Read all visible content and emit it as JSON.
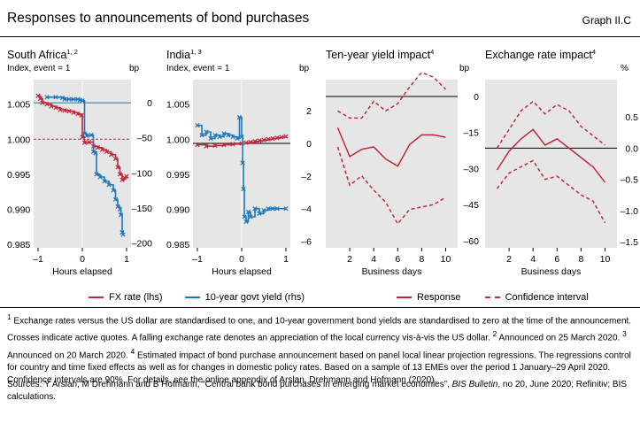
{
  "header": {
    "title": "Responses to announcements of bond purchases",
    "graph_label": "Graph II.C"
  },
  "panels": {
    "sa": {
      "title": "South Africa",
      "sup": "1, 2",
      "left_unit": "Index, event = 1",
      "right_unit": "bp"
    },
    "india": {
      "title": "India",
      "sup": "1, 3",
      "left_unit": "Index, event = 1",
      "right_unit": "bp"
    },
    "yield": {
      "title": "Ten-year yield impact",
      "sup": "4",
      "right_unit": "bp"
    },
    "fx": {
      "title": "Exchange rate impact",
      "sup": "4",
      "right_unit": "%"
    }
  },
  "legend_left": {
    "fx": "FX rate (lhs)",
    "yield": "10-year govt yield (rhs)"
  },
  "legend_right": {
    "response": "Response",
    "ci": "Confidence interval"
  },
  "colors": {
    "red": "#c0283c",
    "blue": "#1f77b9",
    "panel_bg": "#e6e6e6"
  },
  "notes": {
    "n1": "Exchange rates versus the US dollar are standardised to one, and 10-year government bond yields are standardised to zero at the time of the announcement. Crosses indicate active quotes. A falling exchange rate denotes an appreciation of the local currency vis-à-vis the US dollar.",
    "n2": "Announced on 25 March 2020.",
    "n3": "Announced on 20 March 2020.",
    "n4": "Estimated impact of bond purchase announcement based on panel local linear projection regressions. The regressions control for country and time fixed effects as well as for changes in domestic policy rates. Based on a sample of 13 EMEs over the period 1 January–29 April 2020. Confidence intervals are 90%. For details, see the online appendix of Arslan, Drehmann and Hofmann (2020).",
    "m1": "1",
    "m2": "2",
    "m3": "3",
    "m4": "4"
  },
  "sources": {
    "prefix": "Sources: Y Arslan, M Drehmann and B Hofmann, “Central bank bond purchases in emerging market economies”,",
    "pub": "BIS Bulletin",
    "suffix": ", no 20, June 2020; Refinitiv; BIS calculations."
  },
  "chart_data": [
    {
      "type": "line",
      "name": "South Africa",
      "xlabel": "Hours elapsed",
      "xlim": [
        -1.1,
        1.1
      ],
      "xticks": [
        -1,
        0,
        1
      ],
      "y_left": {
        "label": "Index, event = 1",
        "lim": [
          0.9845,
          1.0085
        ],
        "ticks": [
          0.985,
          0.99,
          0.995,
          1.0,
          1.005
        ],
        "tick_labels": [
          "0.985",
          "0.990",
          "0.995",
          "1.000",
          "1.005"
        ]
      },
      "y_right": {
        "label": "bp",
        "lim": [
          -207,
          33
        ],
        "ticks": [
          -200,
          -150,
          -100,
          -50,
          0
        ],
        "tick_labels": [
          "–200",
          "–150",
          "–100",
          "–50",
          "0"
        ]
      },
      "series": [
        {
          "name": "FX rate (lhs)",
          "axis": "left",
          "color": "#c0283c",
          "x": [
            -1.0,
            -0.95,
            -0.9,
            -0.8,
            -0.7,
            -0.6,
            -0.5,
            -0.4,
            -0.3,
            -0.2,
            -0.1,
            -0.02,
            0.0,
            0.05,
            0.15,
            0.25,
            0.35,
            0.45,
            0.55,
            0.65,
            0.75,
            0.8,
            0.85,
            0.9,
            0.95,
            1.0
          ],
          "y": [
            1.0062,
            1.0058,
            1.0052,
            1.005,
            1.0047,
            1.0045,
            1.0042,
            1.0041,
            1.004,
            1.0038,
            1.0036,
            1.0034,
            1.0003,
            0.9995,
            0.9996,
            0.999,
            0.9988,
            0.9985,
            0.9982,
            0.9978,
            0.9972,
            0.996,
            0.995,
            0.9942,
            0.9945,
            0.9947
          ]
        },
        {
          "name": "10-year govt yield (rhs)",
          "axis": "right",
          "color": "#1f77b9",
          "x": [
            -0.8,
            -0.6,
            -0.45,
            -0.4,
            -0.3,
            -0.2,
            -0.1,
            -0.05,
            0.0,
            0.05,
            0.1,
            0.2,
            0.25,
            0.3,
            0.32,
            0.4,
            0.5,
            0.6,
            0.7,
            0.75,
            0.8,
            0.85,
            0.87,
            0.9,
            0.92
          ],
          "y": [
            8,
            8,
            7,
            5,
            5,
            5,
            5,
            4,
            3,
            -44,
            -47,
            -46,
            -70,
            -72,
            -102,
            -106,
            -112,
            -117,
            -125,
            -138,
            -148,
            -152,
            -160,
            -185,
            -188
          ]
        }
      ],
      "reference_lines": [
        {
          "axis": "left",
          "y": 1.0,
          "color": "#c0283c",
          "style": "dashed"
        },
        {
          "axis": "right",
          "y": 0,
          "color": "#1f77b9",
          "style": "solid"
        }
      ]
    },
    {
      "type": "line",
      "name": "India",
      "xlabel": "Hours elapsed",
      "xlim": [
        -1.1,
        1.1
      ],
      "xticks": [
        -1,
        0,
        1
      ],
      "y_left": {
        "label": "Index, event = 1",
        "lim": [
          0.9845,
          1.0085
        ],
        "ticks": [
          0.985,
          0.99,
          0.995,
          1.0,
          1.005
        ],
        "tick_labels": [
          "0.985",
          "0.990",
          "0.995",
          "1.000",
          "1.005"
        ]
      },
      "y_right": {
        "label": "bp",
        "lim": [
          -6.4,
          3.9
        ],
        "ticks": [
          -6,
          -4,
          -2,
          0,
          2
        ],
        "tick_labels": [
          "–6",
          "–4",
          "–2",
          "0",
          "2"
        ]
      },
      "series": [
        {
          "name": "FX rate (lhs)",
          "axis": "left",
          "color": "#c0283c",
          "x": [
            -1.0,
            -0.8,
            -0.6,
            -0.4,
            -0.2,
            0.0,
            0.1,
            0.2,
            0.3,
            0.4,
            0.5,
            0.6,
            0.7,
            0.8,
            0.9,
            1.0
          ],
          "y": [
            0.9992,
            0.999,
            0.9991,
            0.9992,
            0.9993,
            0.9994,
            0.9995,
            0.9996,
            0.9997,
            0.9998,
            0.9999,
            1.0,
            1.0001,
            1.0002,
            1.0003,
            1.0004
          ]
        },
        {
          "name": "10-year govt yield (rhs)",
          "axis": "right",
          "color": "#1f77b9",
          "x": [
            -1.0,
            -0.9,
            -0.8,
            -0.7,
            -0.6,
            -0.5,
            -0.4,
            -0.3,
            -0.2,
            -0.1,
            -0.05,
            0.0,
            0.02,
            0.04,
            0.06,
            0.1,
            0.15,
            0.2,
            0.3,
            0.4,
            0.5,
            0.6,
            0.7,
            0.8,
            1.0
          ],
          "y": [
            1.1,
            0.5,
            0.7,
            0.3,
            0.5,
            0.4,
            0.6,
            0.5,
            0.4,
            0.3,
            1.6,
            0.4,
            -1.2,
            -2.8,
            -4.5,
            -4.8,
            -4.2,
            -4.5,
            -4.0,
            -4.3,
            -4.1,
            -4.0,
            -4.0,
            -4.0,
            -4.0
          ]
        }
      ],
      "reference_lines": [
        {
          "axis": "right",
          "y": 0,
          "color": "#000000",
          "style": "solid"
        }
      ]
    },
    {
      "type": "line",
      "name": "Ten-year yield impact",
      "xlabel": "Business days",
      "xlim": [
        0,
        11
      ],
      "xticks": [
        2,
        4,
        6,
        8,
        10
      ],
      "y_right": {
        "label": "bp",
        "lim": [
          -63,
          7
        ],
        "ticks": [
          -60,
          -45,
          -30,
          -15,
          0
        ],
        "tick_labels": [
          "–60",
          "–45",
          "–30",
          "–15",
          "0"
        ]
      },
      "series": [
        {
          "name": "Response",
          "color": "#c0283c",
          "style": "solid",
          "x": [
            1,
            2,
            3,
            4,
            5,
            6,
            7,
            8,
            9,
            10
          ],
          "y": [
            -13,
            -25,
            -22,
            -21,
            -26,
            -29,
            -20,
            -16,
            -16,
            -17
          ]
        },
        {
          "name": "Confidence interval",
          "color": "#c0283c",
          "style": "dashed",
          "x": [
            1,
            2,
            3,
            4,
            5,
            6,
            7,
            8,
            9,
            10
          ],
          "y": [
            -6,
            -9,
            -9,
            -2,
            -6,
            -3,
            4,
            10,
            8,
            3
          ]
        },
        {
          "name": "Confidence interval",
          "color": "#c0283c",
          "style": "dashed",
          "x": [
            1,
            2,
            3,
            4,
            5,
            6,
            7,
            8,
            9,
            10
          ],
          "y": [
            -21,
            -37,
            -33,
            -39,
            -44,
            -53,
            -47,
            -46,
            -45,
            -42
          ]
        }
      ],
      "reference_lines": [
        {
          "y": 0,
          "color": "#000000",
          "style": "solid"
        }
      ]
    },
    {
      "type": "line",
      "name": "Exchange rate impact",
      "xlabel": "Business days",
      "xlim": [
        0,
        11
      ],
      "xticks": [
        2,
        4,
        6,
        8,
        10
      ],
      "y_right": {
        "label": "%",
        "lim": [
          -1.6,
          1.1
        ],
        "ticks": [
          -1.5,
          -1.0,
          -0.5,
          0.0,
          0.5
        ],
        "tick_labels": [
          "–1.5",
          "–1.0",
          "–0.5",
          "0.0",
          "0.5"
        ]
      },
      "series": [
        {
          "name": "Response",
          "color": "#c0283c",
          "style": "solid",
          "x": [
            1,
            2,
            3,
            4,
            5,
            6,
            7,
            8,
            9,
            10
          ],
          "y": [
            -0.35,
            -0.05,
            0.15,
            0.3,
            0.05,
            0.15,
            0.0,
            -0.15,
            -0.3,
            -0.55
          ]
        },
        {
          "name": "Confidence interval",
          "color": "#c0283c",
          "style": "dashed",
          "x": [
            1,
            2,
            3,
            4,
            5,
            6,
            7,
            8,
            9,
            10
          ],
          "y": [
            0.0,
            0.3,
            0.6,
            0.75,
            0.55,
            0.7,
            0.6,
            0.35,
            0.2,
            0.05
          ]
        },
        {
          "name": "Confidence interval",
          "color": "#c0283c",
          "style": "dashed",
          "x": [
            1,
            2,
            3,
            4,
            5,
            6,
            7,
            8,
            9,
            10
          ],
          "y": [
            -0.65,
            -0.4,
            -0.3,
            -0.2,
            -0.5,
            -0.45,
            -0.6,
            -0.75,
            -0.85,
            -1.2
          ]
        }
      ],
      "reference_lines": [
        {
          "y": 0,
          "color": "#000000",
          "style": "solid"
        }
      ]
    }
  ]
}
